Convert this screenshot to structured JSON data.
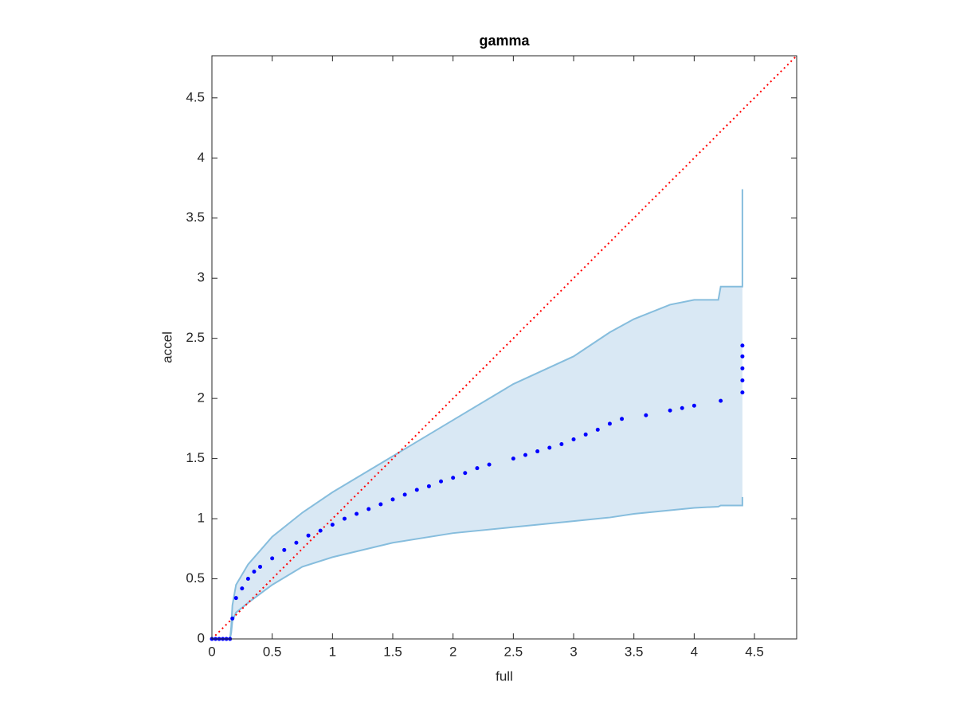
{
  "chart_data": {
    "type": "scatter",
    "title": "gamma",
    "x_label": "full",
    "y_label": "accel",
    "xlim": [
      0,
      4.85
    ],
    "ylim": [
      0,
      4.85
    ],
    "xticks": [
      0,
      0.5,
      1,
      1.5,
      2,
      2.5,
      3,
      3.5,
      4,
      4.5
    ],
    "yticks": [
      0,
      0.5,
      1,
      1.5,
      2,
      2.5,
      3,
      3.5,
      4,
      4.5
    ],
    "band": {
      "fill": "#d9e8f4",
      "color": "#86bddd",
      "x": [
        0,
        0.15,
        0.16,
        0.17,
        0.2,
        0.3,
        0.5,
        0.75,
        1.0,
        1.5,
        2.0,
        2.5,
        3.0,
        3.3,
        3.5,
        3.8,
        4.0,
        4.2,
        4.22,
        4.4,
        4.4
      ],
      "upper": [
        0,
        0,
        0.1,
        0.28,
        0.45,
        0.62,
        0.85,
        1.05,
        1.22,
        1.52,
        1.82,
        2.12,
        2.35,
        2.55,
        2.66,
        2.78,
        2.82,
        2.82,
        2.93,
        2.93,
        3.74
      ],
      "lower": [
        0,
        0,
        0.05,
        0.15,
        0.22,
        0.3,
        0.45,
        0.6,
        0.68,
        0.8,
        0.88,
        0.93,
        0.98,
        1.01,
        1.04,
        1.07,
        1.09,
        1.1,
        1.11,
        1.11,
        1.18
      ]
    },
    "points": {
      "color": "#0000ff",
      "x": [
        0,
        0.03,
        0.06,
        0.09,
        0.12,
        0.15,
        0.17,
        0.2,
        0.25,
        0.3,
        0.35,
        0.4,
        0.5,
        0.6,
        0.7,
        0.8,
        0.9,
        1.0,
        1.1,
        1.2,
        1.3,
        1.4,
        1.5,
        1.6,
        1.7,
        1.8,
        1.9,
        2.0,
        2.1,
        2.2,
        2.3,
        2.5,
        2.6,
        2.7,
        2.8,
        2.9,
        3.0,
        3.1,
        3.2,
        3.3,
        3.4,
        3.6,
        3.8,
        3.9,
        4.0,
        4.22,
        4.4,
        4.4,
        4.4,
        4.4,
        4.4
      ],
      "y": [
        0,
        0,
        0,
        0,
        0,
        0,
        0.17,
        0.34,
        0.42,
        0.5,
        0.56,
        0.6,
        0.67,
        0.74,
        0.8,
        0.86,
        0.9,
        0.95,
        1.0,
        1.04,
        1.08,
        1.12,
        1.16,
        1.2,
        1.24,
        1.27,
        1.31,
        1.34,
        1.38,
        1.42,
        1.45,
        1.5,
        1.53,
        1.56,
        1.59,
        1.62,
        1.66,
        1.7,
        1.74,
        1.79,
        1.83,
        1.86,
        1.9,
        1.92,
        1.94,
        1.98,
        2.05,
        2.15,
        2.25,
        2.35,
        2.44
      ]
    },
    "reference": {
      "color": "#ff0000",
      "x": [
        0,
        4.85
      ],
      "y": [
        0,
        4.85
      ]
    }
  }
}
